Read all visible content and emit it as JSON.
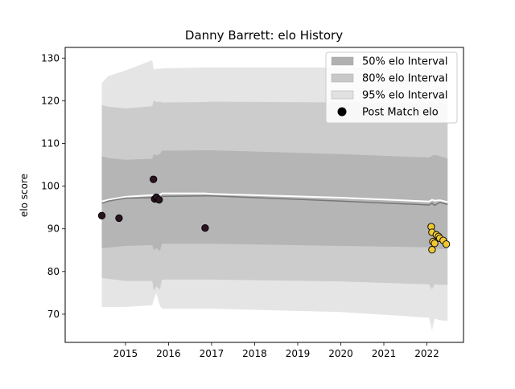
{
  "chart_data": {
    "type": "scatter",
    "title": "Danny Barrett: elo History",
    "xlabel": "",
    "ylabel": "elo score",
    "xlim": [
      2013.6,
      2022.85
    ],
    "ylim": [
      63.4,
      132.5
    ],
    "x_ticks": [
      2015,
      2016,
      2017,
      2018,
      2019,
      2020,
      2021,
      2022
    ],
    "x_tick_labels": [
      "2015",
      "2016",
      "2017",
      "2018",
      "2019",
      "2020",
      "2021",
      "2022"
    ],
    "y_ticks": [
      70,
      80,
      90,
      100,
      110,
      120,
      130
    ],
    "y_tick_labels": [
      "70",
      "80",
      "90",
      "100",
      "110",
      "120",
      "130"
    ],
    "grid": false,
    "legend_position": "top-right",
    "legend": [
      {
        "label": "50% elo Interval",
        "kind": "band",
        "color": "#b0b0b0"
      },
      {
        "label": "80% elo Interval",
        "kind": "band",
        "color": "#c8c8c8"
      },
      {
        "label": "95% elo Interval",
        "kind": "band",
        "color": "#e1e1e1"
      },
      {
        "label": "Post Match elo",
        "kind": "marker",
        "color": "#000000"
      }
    ],
    "intervals": {
      "x": [
        2014.45,
        2014.6,
        2015.0,
        2015.62,
        2015.66,
        2015.72,
        2015.8,
        2015.85,
        2016.84,
        2017.0,
        2020.0,
        2022.05,
        2022.12,
        2022.18,
        2022.3,
        2022.48
      ],
      "mean": [
        96.0,
        96.5,
        97.2,
        97.3,
        96.9,
        97.2,
        97.0,
        97.6,
        97.7,
        97.7,
        96.5,
        95.6,
        96.0,
        95.5,
        96.2,
        95.7
      ],
      "upper_trend": [
        96.4,
        96.8,
        97.5,
        97.9,
        97.7,
        98.1,
        98.0,
        98.3,
        98.3,
        98.2,
        97.3,
        96.4,
        96.8,
        96.6,
        96.7,
        96.3
      ],
      "p50_low": [
        85.5,
        85.6,
        86.0,
        86.2,
        85.0,
        85.5,
        84.8,
        86.5,
        86.5,
        86.5,
        86.0,
        85.7,
        84.4,
        85.4,
        85.3,
        85.3
      ],
      "p50_high": [
        107.0,
        106.6,
        106.2,
        106.4,
        107.6,
        107.2,
        107.5,
        108.3,
        108.4,
        108.4,
        107.5,
        106.7,
        107.1,
        107.3,
        107.0,
        106.5
      ],
      "p80_low": [
        78.5,
        78.3,
        77.8,
        77.8,
        75.5,
        76.5,
        75.8,
        78.1,
        78.1,
        78.1,
        77.7,
        77.0,
        75.8,
        77.0,
        76.9,
        76.9
      ],
      "p80_high": [
        119.0,
        118.6,
        118.2,
        118.7,
        120.1,
        119.7,
        119.8,
        119.6,
        119.7,
        119.8,
        119.6,
        119.4,
        119.9,
        119.4,
        119.4,
        119.0
      ],
      "p95_low": [
        71.7,
        71.7,
        71.7,
        72.1,
        73.5,
        74.9,
        72.0,
        71.3,
        71.3,
        71.3,
        70.5,
        69.2,
        66.2,
        69.0,
        68.6,
        68.4
      ],
      "p95_high": [
        124.2,
        125.8,
        127.1,
        129.5,
        127.3,
        127.5,
        127.5,
        127.6,
        127.8,
        127.8,
        127.8,
        127.6,
        128.2,
        127.6,
        127.5,
        127.1
      ]
    },
    "series": [
      {
        "points": [
          {
            "x": 2014.45,
            "y": 93.1,
            "color": "#2a1320"
          },
          {
            "x": 2014.85,
            "y": 92.5,
            "color": "#2a1320"
          },
          {
            "x": 2015.65,
            "y": 101.6,
            "color": "#2a1320"
          },
          {
            "x": 2015.68,
            "y": 97.0,
            "color": "#2a1320"
          },
          {
            "x": 2015.72,
            "y": 97.4,
            "color": "#2a1320"
          },
          {
            "x": 2015.78,
            "y": 96.8,
            "color": "#2a1320"
          },
          {
            "x": 2016.85,
            "y": 90.2,
            "color": "#2a1320"
          },
          {
            "x": 2022.1,
            "y": 90.5,
            "color": "#f1c832"
          },
          {
            "x": 2022.12,
            "y": 89.2,
            "color": "#f1c832"
          },
          {
            "x": 2022.14,
            "y": 87.0,
            "color": "#f1c832"
          },
          {
            "x": 2022.12,
            "y": 85.1,
            "color": "#f1c832"
          },
          {
            "x": 2022.18,
            "y": 86.6,
            "color": "#f1c832"
          },
          {
            "x": 2022.22,
            "y": 88.6,
            "color": "#f1c832"
          },
          {
            "x": 2022.27,
            "y": 88.2,
            "color": "#f1c832"
          },
          {
            "x": 2022.3,
            "y": 87.8,
            "color": "#f1c832"
          },
          {
            "x": 2022.38,
            "y": 87.3,
            "color": "#f1c832"
          },
          {
            "x": 2022.45,
            "y": 86.4,
            "color": "#f1c832"
          }
        ]
      }
    ]
  }
}
